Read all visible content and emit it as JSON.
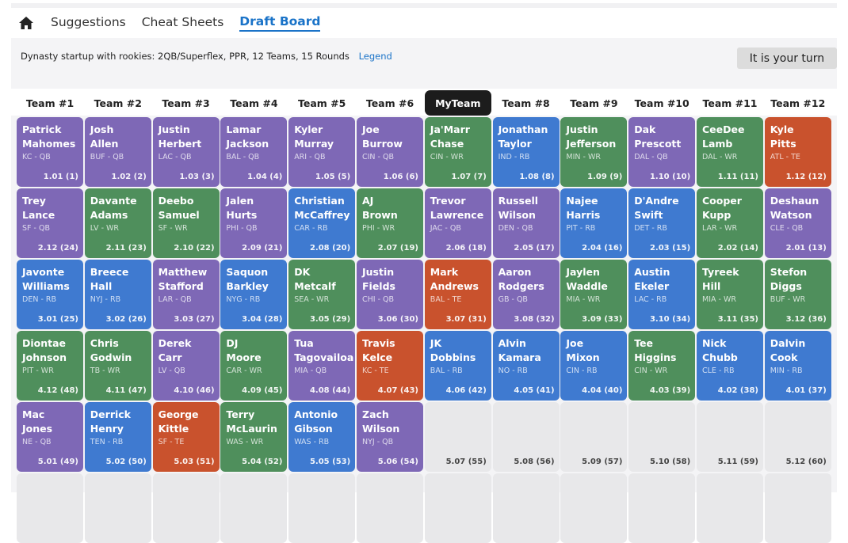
{
  "nav": {
    "items": [
      "Suggestions",
      "Cheat Sheets",
      "Draft Board"
    ],
    "active": "Draft Board"
  },
  "settings": {
    "text": "Dynasty startup with rookies: 2QB/Superflex, PPR, 12 Teams, 15 Rounds",
    "legend_label": "Legend"
  },
  "turn_button": "It is your turn",
  "teams": [
    "Team #1",
    "Team #2",
    "Team #3",
    "Team #4",
    "Team #5",
    "Team #6",
    "MyTeam",
    "Team #8",
    "Team #9",
    "Team #10",
    "Team #11",
    "Team #12"
  ],
  "my_team": "MyTeam",
  "colors": {
    "QB": "#7e68b6",
    "RB": "#3f7ad0",
    "WR": "#4f8f5c",
    "TE": "#c9522d",
    "empty": "#e8e8ea",
    "accent": "#1a73c8"
  },
  "rounds": [
    [
      {
        "first": "Patrick",
        "last": "Mahomes",
        "meta": "KC - QB",
        "pos": "QB",
        "pick": "1.01 (1)"
      },
      {
        "first": "Josh",
        "last": "Allen",
        "meta": "BUF - QB",
        "pos": "QB",
        "pick": "1.02 (2)"
      },
      {
        "first": "Justin",
        "last": "Herbert",
        "meta": "LAC - QB",
        "pos": "QB",
        "pick": "1.03 (3)"
      },
      {
        "first": "Lamar",
        "last": "Jackson",
        "meta": "BAL - QB",
        "pos": "QB",
        "pick": "1.04 (4)"
      },
      {
        "first": "Kyler",
        "last": "Murray",
        "meta": "ARI - QB",
        "pos": "QB",
        "pick": "1.05 (5)"
      },
      {
        "first": "Joe",
        "last": "Burrow",
        "meta": "CIN - QB",
        "pos": "QB",
        "pick": "1.06 (6)"
      },
      {
        "first": "Ja'Marr",
        "last": "Chase",
        "meta": "CIN - WR",
        "pos": "WR",
        "pick": "1.07 (7)"
      },
      {
        "first": "Jonathan",
        "last": "Taylor",
        "meta": "IND - RB",
        "pos": "RB",
        "pick": "1.08 (8)"
      },
      {
        "first": "Justin",
        "last": "Jefferson",
        "meta": "MIN - WR",
        "pos": "WR",
        "pick": "1.09 (9)"
      },
      {
        "first": "Dak",
        "last": "Prescott",
        "meta": "DAL - QB",
        "pos": "QB",
        "pick": "1.10 (10)"
      },
      {
        "first": "CeeDee",
        "last": "Lamb",
        "meta": "DAL - WR",
        "pos": "WR",
        "pick": "1.11 (11)"
      },
      {
        "first": "Kyle",
        "last": "Pitts",
        "meta": "ATL - TE",
        "pos": "TE",
        "pick": "1.12 (12)"
      }
    ],
    [
      {
        "first": "Trey",
        "last": "Lance",
        "meta": "SF - QB",
        "pos": "QB",
        "pick": "2.12 (24)"
      },
      {
        "first": "Davante",
        "last": "Adams",
        "meta": "LV - WR",
        "pos": "WR",
        "pick": "2.11 (23)"
      },
      {
        "first": "Deebo",
        "last": "Samuel",
        "meta": "SF - WR",
        "pos": "WR",
        "pick": "2.10 (22)"
      },
      {
        "first": "Jalen",
        "last": "Hurts",
        "meta": "PHI - QB",
        "pos": "QB",
        "pick": "2.09 (21)"
      },
      {
        "first": "Christian",
        "last": "McCaffrey",
        "meta": "CAR - RB",
        "pos": "RB",
        "pick": "2.08 (20)"
      },
      {
        "first": "AJ",
        "last": "Brown",
        "meta": "PHI - WR",
        "pos": "WR",
        "pick": "2.07 (19)"
      },
      {
        "first": "Trevor",
        "last": "Lawrence",
        "meta": "JAC - QB",
        "pos": "QB",
        "pick": "2.06 (18)"
      },
      {
        "first": "Russell",
        "last": "Wilson",
        "meta": "DEN - QB",
        "pos": "QB",
        "pick": "2.05 (17)"
      },
      {
        "first": "Najee",
        "last": "Harris",
        "meta": "PIT - RB",
        "pos": "RB",
        "pick": "2.04 (16)"
      },
      {
        "first": "D'Andre",
        "last": "Swift",
        "meta": "DET - RB",
        "pos": "RB",
        "pick": "2.03 (15)"
      },
      {
        "first": "Cooper",
        "last": "Kupp",
        "meta": "LAR - WR",
        "pos": "WR",
        "pick": "2.02 (14)"
      },
      {
        "first": "Deshaun",
        "last": "Watson",
        "meta": "CLE - QB",
        "pos": "QB",
        "pick": "2.01 (13)"
      }
    ],
    [
      {
        "first": "Javonte",
        "last": "Williams",
        "meta": "DEN - RB",
        "pos": "RB",
        "pick": "3.01 (25)"
      },
      {
        "first": "Breece",
        "last": "Hall",
        "meta": "NYJ - RB",
        "pos": "RB",
        "pick": "3.02 (26)"
      },
      {
        "first": "Matthew",
        "last": "Stafford",
        "meta": "LAR - QB",
        "pos": "QB",
        "pick": "3.03 (27)"
      },
      {
        "first": "Saquon",
        "last": "Barkley",
        "meta": "NYG - RB",
        "pos": "RB",
        "pick": "3.04 (28)"
      },
      {
        "first": "DK",
        "last": "Metcalf",
        "meta": "SEA - WR",
        "pos": "WR",
        "pick": "3.05 (29)"
      },
      {
        "first": "Justin",
        "last": "Fields",
        "meta": "CHI - QB",
        "pos": "QB",
        "pick": "3.06 (30)"
      },
      {
        "first": "Mark",
        "last": "Andrews",
        "meta": "BAL - TE",
        "pos": "TE",
        "pick": "3.07 (31)"
      },
      {
        "first": "Aaron",
        "last": "Rodgers",
        "meta": "GB - QB",
        "pos": "QB",
        "pick": "3.08 (32)"
      },
      {
        "first": "Jaylen",
        "last": "Waddle",
        "meta": "MIA - WR",
        "pos": "WR",
        "pick": "3.09 (33)"
      },
      {
        "first": "Austin",
        "last": "Ekeler",
        "meta": "LAC - RB",
        "pos": "RB",
        "pick": "3.10 (34)"
      },
      {
        "first": "Tyreek",
        "last": "Hill",
        "meta": "MIA - WR",
        "pos": "WR",
        "pick": "3.11 (35)"
      },
      {
        "first": "Stefon",
        "last": "Diggs",
        "meta": "BUF - WR",
        "pos": "WR",
        "pick": "3.12 (36)"
      }
    ],
    [
      {
        "first": "Diontae",
        "last": "Johnson",
        "meta": "PIT - WR",
        "pos": "WR",
        "pick": "4.12 (48)"
      },
      {
        "first": "Chris",
        "last": "Godwin",
        "meta": "TB - WR",
        "pos": "WR",
        "pick": "4.11 (47)"
      },
      {
        "first": "Derek",
        "last": "Carr",
        "meta": "LV - QB",
        "pos": "QB",
        "pick": "4.10 (46)"
      },
      {
        "first": "DJ",
        "last": "Moore",
        "meta": "CAR - WR",
        "pos": "WR",
        "pick": "4.09 (45)"
      },
      {
        "first": "Tua",
        "last": "Tagovailoa",
        "meta": "MIA - QB",
        "pos": "QB",
        "pick": "4.08 (44)"
      },
      {
        "first": "Travis",
        "last": "Kelce",
        "meta": "KC - TE",
        "pos": "TE",
        "pick": "4.07 (43)"
      },
      {
        "first": "JK",
        "last": "Dobbins",
        "meta": "BAL - RB",
        "pos": "RB",
        "pick": "4.06 (42)"
      },
      {
        "first": "Alvin",
        "last": "Kamara",
        "meta": "NO - RB",
        "pos": "RB",
        "pick": "4.05 (41)"
      },
      {
        "first": "Joe",
        "last": "Mixon",
        "meta": "CIN - RB",
        "pos": "RB",
        "pick": "4.04 (40)"
      },
      {
        "first": "Tee",
        "last": "Higgins",
        "meta": "CIN - WR",
        "pos": "WR",
        "pick": "4.03 (39)"
      },
      {
        "first": "Nick",
        "last": "Chubb",
        "meta": "CLE - RB",
        "pos": "RB",
        "pick": "4.02 (38)"
      },
      {
        "first": "Dalvin",
        "last": "Cook",
        "meta": "MIN - RB",
        "pos": "RB",
        "pick": "4.01 (37)"
      }
    ],
    [
      {
        "first": "Mac",
        "last": "Jones",
        "meta": "NE - QB",
        "pos": "QB",
        "pick": "5.01 (49)"
      },
      {
        "first": "Derrick",
        "last": "Henry",
        "meta": "TEN - RB",
        "pos": "RB",
        "pick": "5.02 (50)"
      },
      {
        "first": "George",
        "last": "Kittle",
        "meta": "SF - TE",
        "pos": "TE",
        "pick": "5.03 (51)"
      },
      {
        "first": "Terry",
        "last": "McLaurin",
        "meta": "WAS - WR",
        "pos": "WR",
        "pick": "5.04 (52)"
      },
      {
        "first": "Antonio",
        "last": "Gibson",
        "meta": "WAS - RB",
        "pos": "RB",
        "pick": "5.05 (53)"
      },
      {
        "first": "Zach",
        "last": "Wilson",
        "meta": "NYJ - QB",
        "pos": "QB",
        "pick": "5.06 (54)"
      },
      {
        "pos": "empty",
        "pick": "5.07 (55)"
      },
      {
        "pos": "empty",
        "pick": "5.08 (56)"
      },
      {
        "pos": "empty",
        "pick": "5.09 (57)"
      },
      {
        "pos": "empty",
        "pick": "5.10 (58)"
      },
      {
        "pos": "empty",
        "pick": "5.11 (59)"
      },
      {
        "pos": "empty",
        "pick": "5.12 (60)"
      }
    ],
    [
      {
        "pos": "empty"
      },
      {
        "pos": "empty"
      },
      {
        "pos": "empty"
      },
      {
        "pos": "empty"
      },
      {
        "pos": "empty"
      },
      {
        "pos": "empty"
      },
      {
        "pos": "empty"
      },
      {
        "pos": "empty"
      },
      {
        "pos": "empty"
      },
      {
        "pos": "empty"
      },
      {
        "pos": "empty"
      },
      {
        "pos": "empty"
      }
    ]
  ]
}
